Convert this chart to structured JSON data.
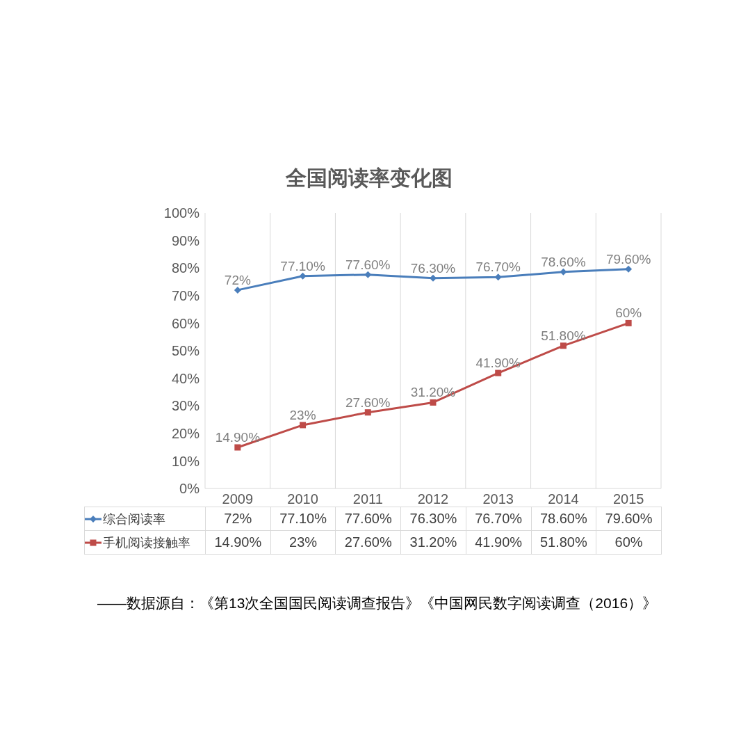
{
  "chart_data": {
    "type": "line",
    "title": "全国阅读率变化图",
    "categories": [
      "2009",
      "2010",
      "2011",
      "2012",
      "2013",
      "2014",
      "2015"
    ],
    "series": [
      {
        "name": "综合阅读率",
        "color": "#4a7ebb",
        "marker": "diamond",
        "values": [
          72,
          77.1,
          77.6,
          76.3,
          76.7,
          78.6,
          79.6
        ],
        "value_labels": [
          "72%",
          "77.10%",
          "77.60%",
          "76.30%",
          "76.70%",
          "78.60%",
          "79.60%"
        ]
      },
      {
        "name": "手机阅读接触率",
        "color": "#be4b48",
        "marker": "square",
        "values": [
          14.9,
          23,
          27.6,
          31.2,
          41.9,
          51.8,
          60
        ],
        "value_labels": [
          "14.90%",
          "23%",
          "27.60%",
          "31.20%",
          "41.90%",
          "51.80%",
          "60%"
        ]
      }
    ],
    "ylim": [
      0,
      100
    ],
    "yticks": [
      {
        "value": 0,
        "label": "0%"
      },
      {
        "value": 10,
        "label": "10%"
      },
      {
        "value": 20,
        "label": "20%"
      },
      {
        "value": 30,
        "label": "30%"
      },
      {
        "value": 40,
        "label": "40%"
      },
      {
        "value": 50,
        "label": "50%"
      },
      {
        "value": 60,
        "label": "60%"
      },
      {
        "value": 70,
        "label": "70%"
      },
      {
        "value": 80,
        "label": "80%"
      },
      {
        "value": 90,
        "label": "90%"
      },
      {
        "value": 100,
        "label": "100%"
      }
    ],
    "grid": "x",
    "legend": "bottom",
    "line_style": "solid",
    "annotations": [
      "——数据源自：《第13次全国国民阅读调查报告》《中国网民数字阅读调查（2016）》"
    ]
  }
}
